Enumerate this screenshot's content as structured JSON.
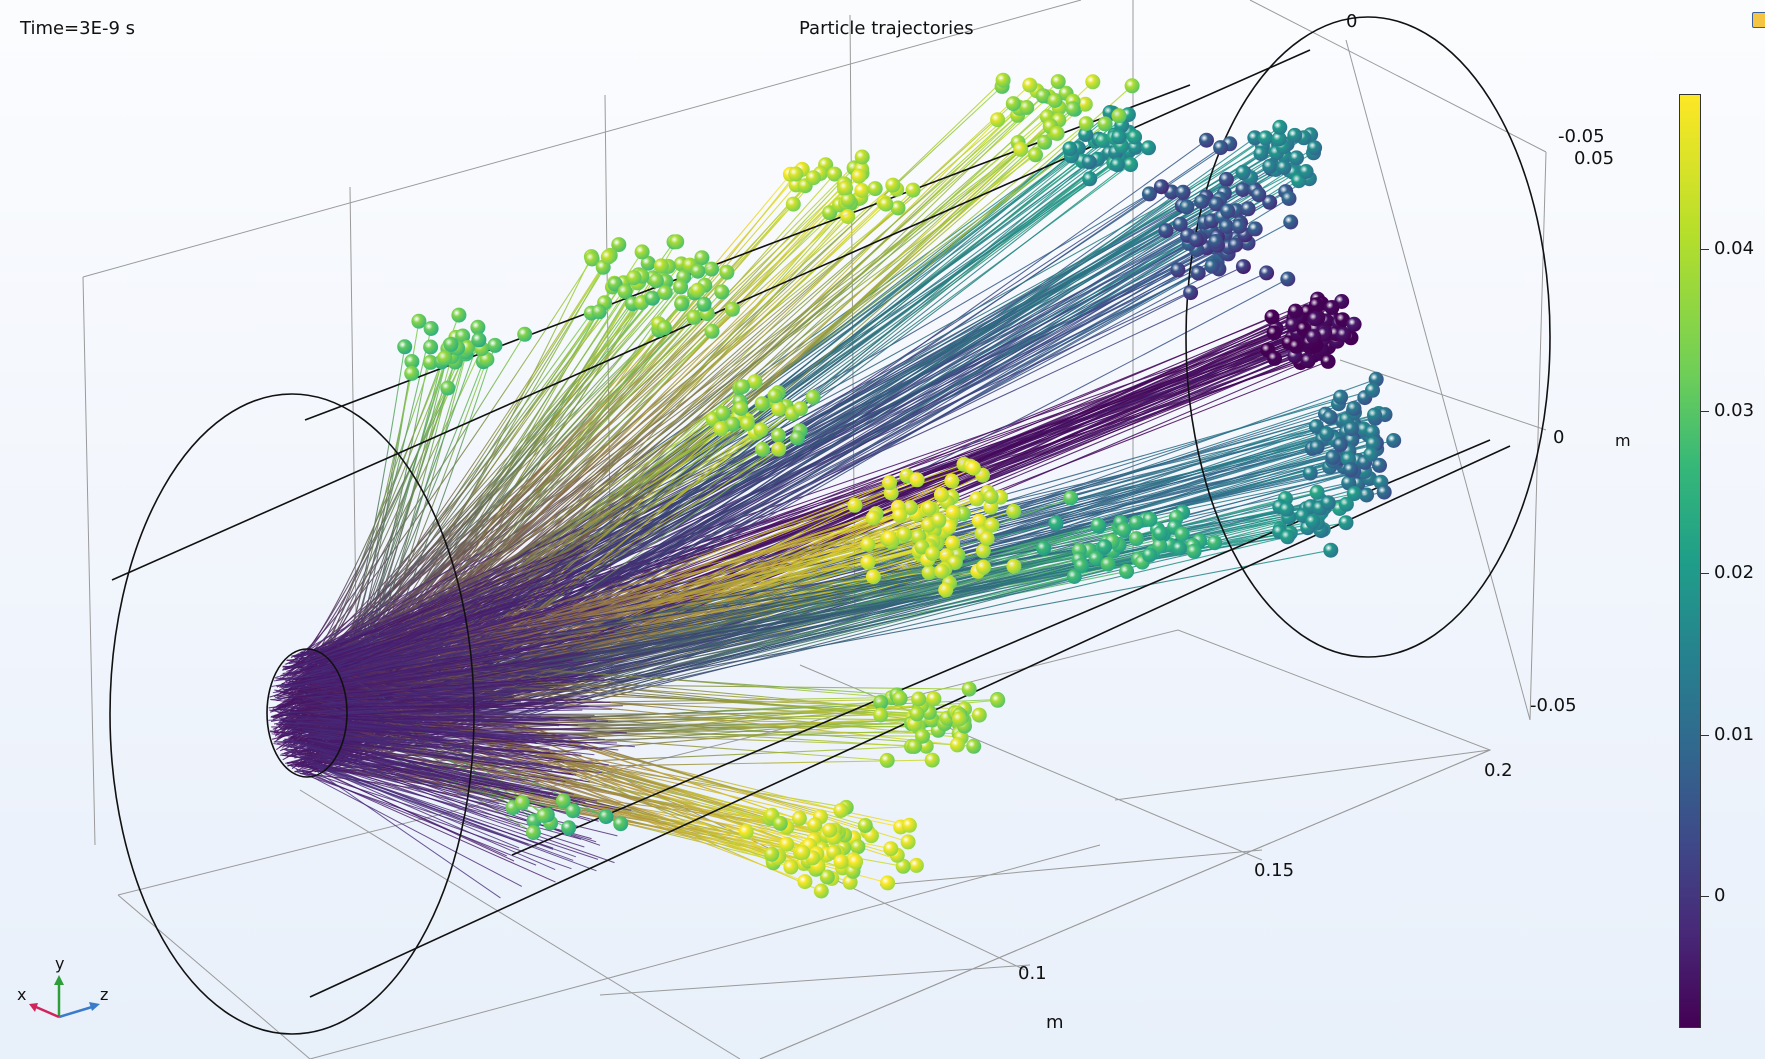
{
  "plot": {
    "time_label": "Time=3E-9 s",
    "title": "Particle trajectories"
  },
  "axes": {
    "x_ticks": [
      "0.1",
      "0.15",
      "0.2"
    ],
    "x_unit": "m",
    "y_ticks_back": [
      "0",
      "-0.05"
    ],
    "y_ticks_right": [
      "0.05",
      "0",
      "-0.05"
    ],
    "y_unit": "m"
  },
  "colorbar": {
    "ticks": [
      "0.04",
      "0.03",
      "0.02",
      "0.01",
      "0"
    ],
    "min": -0.0087,
    "max": 0.049,
    "colors": [
      "#440154",
      "#482878",
      "#3e4a89",
      "#31688e",
      "#26828e",
      "#1f9e89",
      "#35b779",
      "#6ece58",
      "#b5de2b",
      "#fde725"
    ]
  },
  "triad": {
    "x": "x",
    "y": "y",
    "z": "z",
    "x_color": "#d0245a",
    "y_color": "#2e9e3a",
    "z_color": "#3a7cc9"
  },
  "icons": {
    "corner": "plot-settings-icon"
  }
}
